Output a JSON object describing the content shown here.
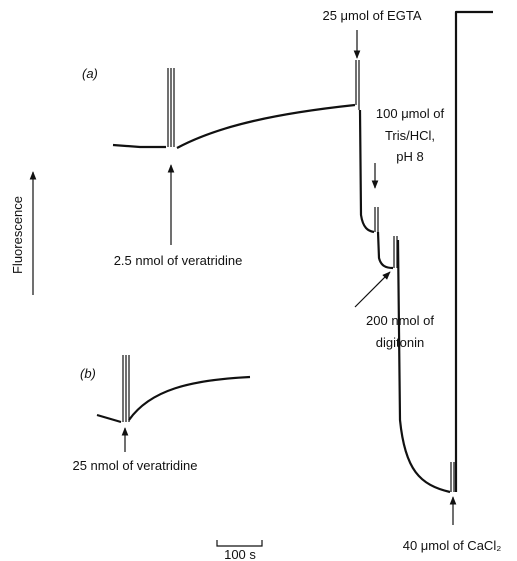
{
  "panel_labels": {
    "a": "(a)",
    "b": "(b)"
  },
  "y_axis_label": "Fluorescence",
  "annotations": {
    "egta": [
      "25 μmol of EGTA"
    ],
    "tris": [
      "100 μmol of",
      "Tris/HCl,",
      "pH 8"
    ],
    "veratridine_a": [
      "2.5 nmol of veratridine"
    ],
    "digitonin": [
      "200 nmol of",
      "digitonin"
    ],
    "veratridine_b": [
      "25 nmol of veratridine"
    ],
    "cacl2": [
      "40 μmol of CaCl₂"
    ]
  },
  "scale_bar": "100 s"
}
